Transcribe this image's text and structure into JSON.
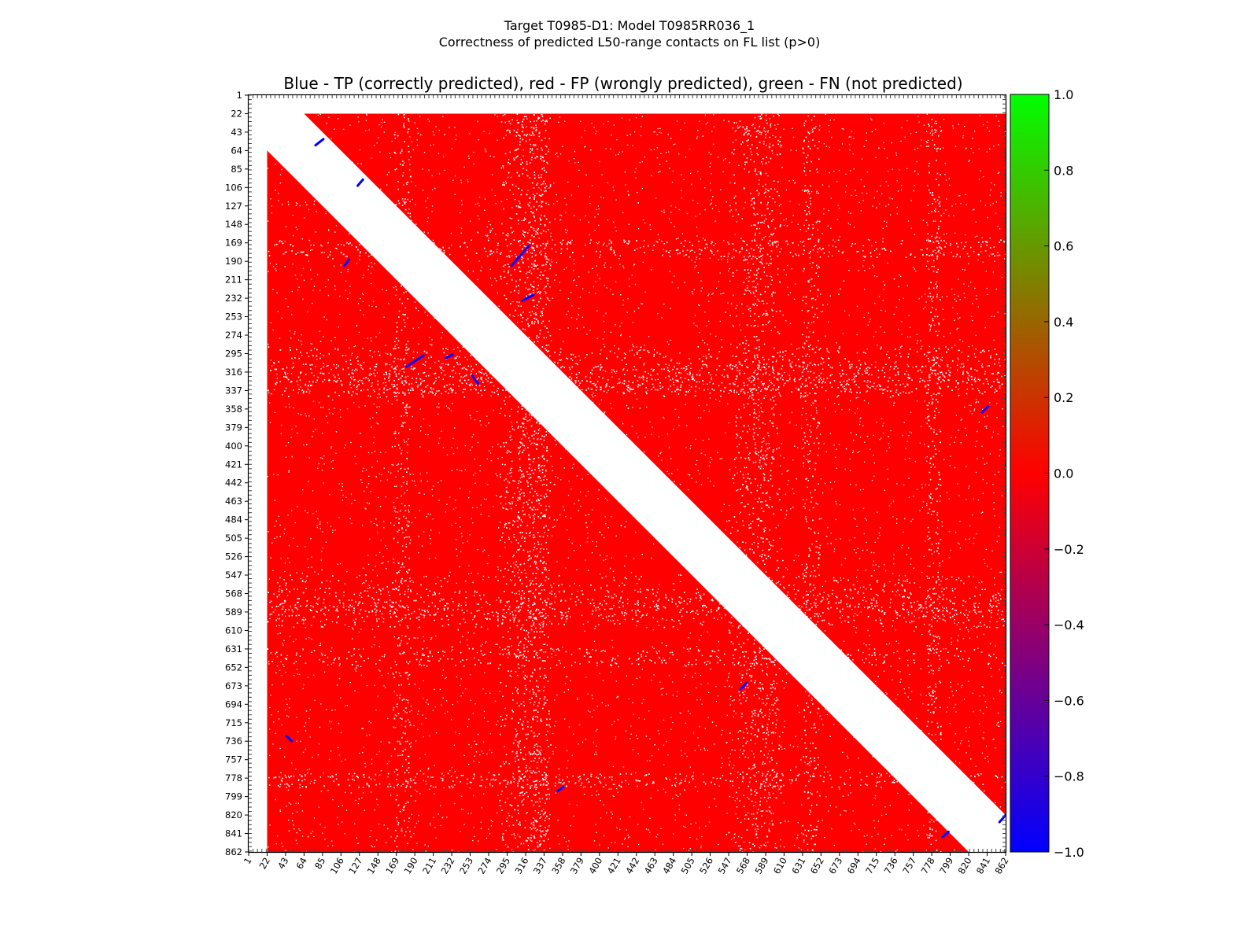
{
  "chart_data": {
    "type": "heatmap",
    "title": "Target T0985-D1: Model T0985RR036_1",
    "title_line2": "Correctness of predicted L50-range contacts on FL list (p>0)",
    "subtitle": "Blue - TP (correctly predicted), red - FP (wrongly predicted), green - FN (not predicted)",
    "matrix_size": 862,
    "x_ticks": [
      1,
      22,
      43,
      64,
      85,
      106,
      127,
      148,
      169,
      190,
      211,
      232,
      253,
      274,
      295,
      316,
      337,
      358,
      379,
      400,
      421,
      442,
      463,
      484,
      505,
      526,
      547,
      568,
      589,
      610,
      631,
      652,
      673,
      694,
      715,
      736,
      757,
      778,
      799,
      820,
      841,
      862
    ],
    "y_ticks": [
      1,
      22,
      43,
      64,
      85,
      106,
      127,
      148,
      169,
      190,
      211,
      232,
      253,
      274,
      295,
      316,
      337,
      358,
      379,
      400,
      421,
      442,
      463,
      484,
      505,
      526,
      547,
      568,
      589,
      610,
      631,
      652,
      673,
      694,
      715,
      736,
      757,
      778,
      799,
      820,
      841,
      862
    ],
    "colorbar": {
      "range": [
        -1.0,
        1.0
      ],
      "ticks": [
        "1.0",
        "0.8",
        "0.6",
        "0.4",
        "0.2",
        "0.0",
        "−0.2",
        "−0.4",
        "−0.6",
        "−0.8",
        "−1.0"
      ],
      "colors": {
        "top": "#00ff00",
        "mid": "#ff0000",
        "bottom": "#0000ff"
      }
    },
    "white_band_upper": {
      "x_start": 64,
      "x_end": 862,
      "y_start": 22,
      "y_end": 820
    },
    "white_band_lower": {
      "x_start": 22,
      "x_end": 820,
      "y_start": 64,
      "y_end": 862
    },
    "white_columns": [
      1,
      20
    ],
    "white_rows": [
      1,
      20
    ],
    "colors": {
      "fp": "#ff0000",
      "tp": "#0000ff",
      "fn": "#00ff00",
      "background": "#ffffff"
    },
    "sparse_bands": [
      {
        "center": 175,
        "width": 10
      },
      {
        "center": 300,
        "width": 14
      },
      {
        "center": 316,
        "width": 10
      },
      {
        "center": 332,
        "width": 8
      },
      {
        "center": 330,
        "width": 14
      },
      {
        "center": 568,
        "width": 22
      },
      {
        "center": 580,
        "width": 18
      },
      {
        "center": 590,
        "width": 16
      },
      {
        "center": 640,
        "width": 10
      },
      {
        "center": 780,
        "width": 8
      }
    ],
    "tp_segments": [
      {
        "from": [
          300,
          195
        ],
        "to": [
          320,
          172
        ]
      },
      {
        "from": [
          312,
          235
        ],
        "to": [
          325,
          228
        ]
      },
      {
        "from": [
          180,
          310
        ],
        "to": [
          200,
          297
        ]
      },
      {
        "from": [
          225,
          300
        ],
        "to": [
          233,
          296
        ]
      },
      {
        "from": [
          255,
          320
        ],
        "to": [
          262,
          329
        ]
      },
      {
        "from": [
          110,
          195
        ],
        "to": [
          115,
          188
        ]
      },
      {
        "from": [
          125,
          104
        ],
        "to": [
          131,
          97
        ]
      },
      {
        "from": [
          835,
          362
        ],
        "to": [
          842,
          355
        ]
      },
      {
        "from": [
          862,
          820
        ],
        "to": [
          855,
          828
        ]
      },
      {
        "from": [
          352,
          793
        ],
        "to": [
          359,
          788
        ]
      },
      {
        "from": [
          790,
          845
        ],
        "to": [
          797,
          839
        ]
      },
      {
        "from": [
          77,
          58
        ],
        "to": [
          86,
          51
        ]
      },
      {
        "from": [
          44,
          730
        ],
        "to": [
          50,
          736
        ]
      },
      {
        "from": [
          560,
          677
        ],
        "to": [
          567,
          670
        ]
      }
    ]
  }
}
